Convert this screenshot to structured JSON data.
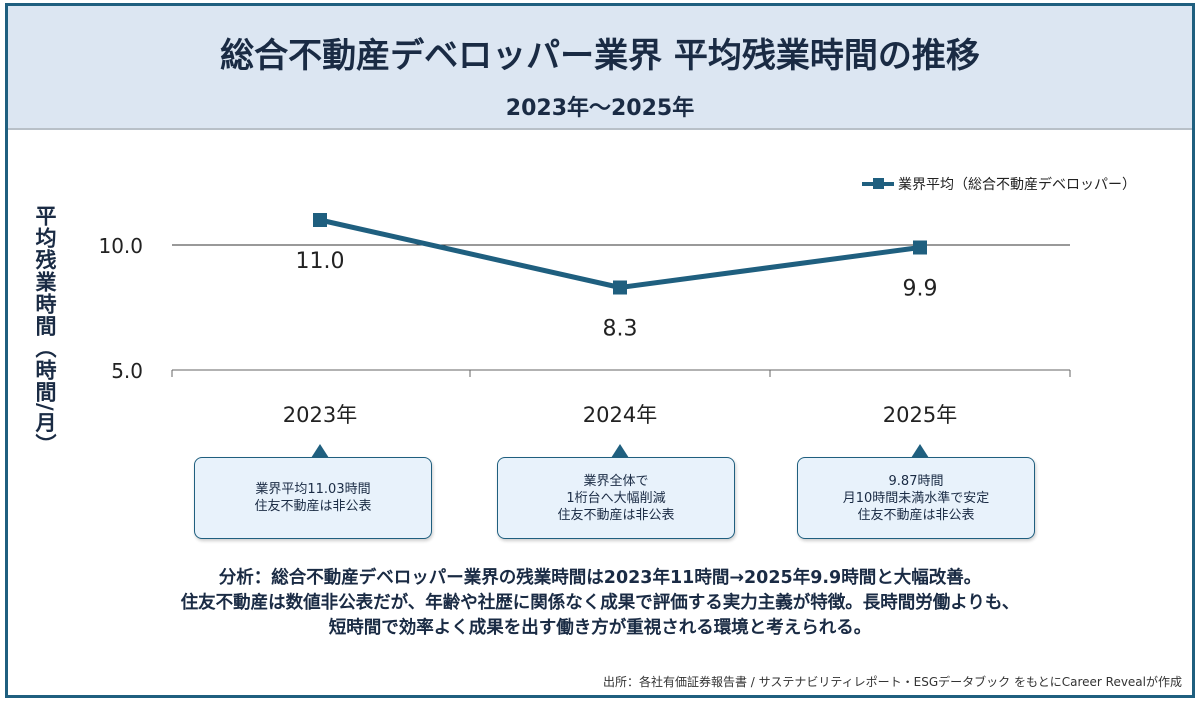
{
  "header": {
    "title": "総合不動産デベロッパー業界 平均残業時間の推移",
    "subtitle": "2023年〜2025年"
  },
  "chart_data": {
    "type": "line",
    "categories": [
      "2023年",
      "2024年",
      "2025年"
    ],
    "series": [
      {
        "name": "業界平均（総合不動産デベロッパー）",
        "values": [
          11.0,
          8.3,
          9.9
        ],
        "color": "#1f5f7f"
      }
    ],
    "data_labels": [
      "11.0",
      "8.3",
      "9.9"
    ],
    "ylabel": "平均残業時間（時間/月）",
    "yticks": [
      "5.0",
      "10.0"
    ],
    "ylim": [
      5,
      10
    ],
    "legend": "top-right"
  },
  "callouts": [
    "業界平均11.03時間\n住友不動産は非公表",
    "業界全体で\n1桁台へ大幅削減\n住友不動産は非公表",
    "9.87時間\n月10時間未満水準で安定\n住友不動産は非公表"
  ],
  "analysis": [
    "分析：総合不動産デベロッパー業界の残業時間は2023年11時間→2025年9.9時間と大幅改善。",
    "住友不動産は数値非公表だが、年齢や社歴に関係なく成果で評価する実力主義が特徴。長時間労働よりも、",
    "短時間で効率よく成果を出す働き方が重視される環境と考えられる。"
  ],
  "source": "出所：各社有価証券報告書 / サステナビリティレポート・ESGデータブック をもとにCareer Revealが作成"
}
